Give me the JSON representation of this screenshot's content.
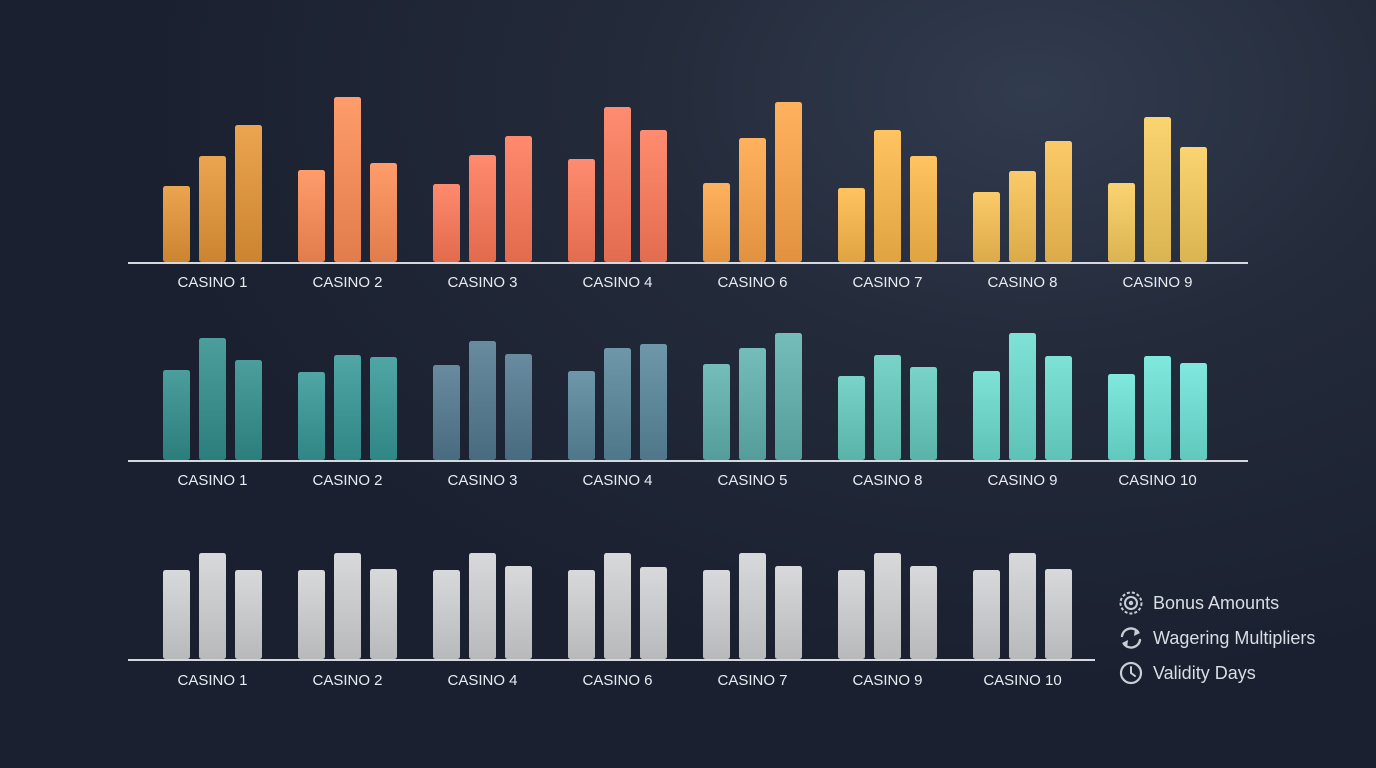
{
  "chart_data": [
    {
      "type": "bar",
      "categories": [
        "CASINO 1",
        "CASINO 2",
        "CASINO 3",
        "CASINO 4",
        "CASINO 6",
        "CASINO 7",
        "CASINO 8",
        "CASINO 9"
      ],
      "series": [
        {
          "values": [
            76,
            92,
            78,
            103,
            79,
            74,
            70,
            79
          ]
        },
        {
          "values": [
            106,
            165,
            107,
            155,
            124,
            132,
            91,
            145
          ]
        },
        {
          "values": [
            137,
            99,
            126,
            132,
            160,
            106,
            121,
            115
          ]
        }
      ],
      "colors": [
        "#d9923e",
        "#ef8a5a",
        "#f0785b",
        "#f07a5e",
        "#f0a04c",
        "#edb24f",
        "#e9b857",
        "#e9c260"
      ]
    },
    {
      "type": "bar",
      "categories": [
        "CASINO 1",
        "CASINO 2",
        "CASINO 3",
        "CASINO 4",
        "CASINO 5",
        "CASINO 8",
        "CASINO 9",
        "CASINO 10"
      ],
      "series": [
        {
          "values": [
            90,
            88,
            95,
            89,
            96,
            84,
            89,
            86
          ]
        },
        {
          "values": [
            122,
            105,
            119,
            112,
            112,
            105,
            127,
            104
          ]
        },
        {
          "values": [
            100,
            103,
            106,
            116,
            127,
            93,
            104,
            97
          ]
        }
      ],
      "colors": [
        "#3a8c8b",
        "#3e9493",
        "#57798d",
        "#5d8598",
        "#62aba8",
        "#68c1b7",
        "#6dd0c5",
        "#6fd6cc"
      ]
    },
    {
      "type": "bar",
      "categories": [
        "CASINO 1",
        "CASINO 2",
        "CASINO 4",
        "CASINO 6",
        "CASINO 7",
        "CASINO 9",
        "CASINO 10"
      ],
      "series": [
        {
          "values": [
            89,
            89,
            89,
            89,
            89,
            89,
            89
          ]
        },
        {
          "values": [
            106,
            106,
            106,
            106,
            106,
            106,
            106
          ]
        },
        {
          "values": [
            89,
            90,
            93,
            92,
            93,
            93,
            90
          ]
        }
      ],
      "colors": [
        "#c6c7c9",
        "#c6c7c9",
        "#c6c7c9",
        "#c6c7c9",
        "#c6c7c9",
        "#c6c7c9",
        "#c6c7c9"
      ]
    }
  ],
  "legend": {
    "items": [
      {
        "label": "Bonus Amounts",
        "icon": "bonus-coin-icon"
      },
      {
        "label": "Wagering Multipliers",
        "icon": "refresh-arrows-icon"
      },
      {
        "label": "Validity Days",
        "icon": "clock-icon"
      }
    ]
  }
}
